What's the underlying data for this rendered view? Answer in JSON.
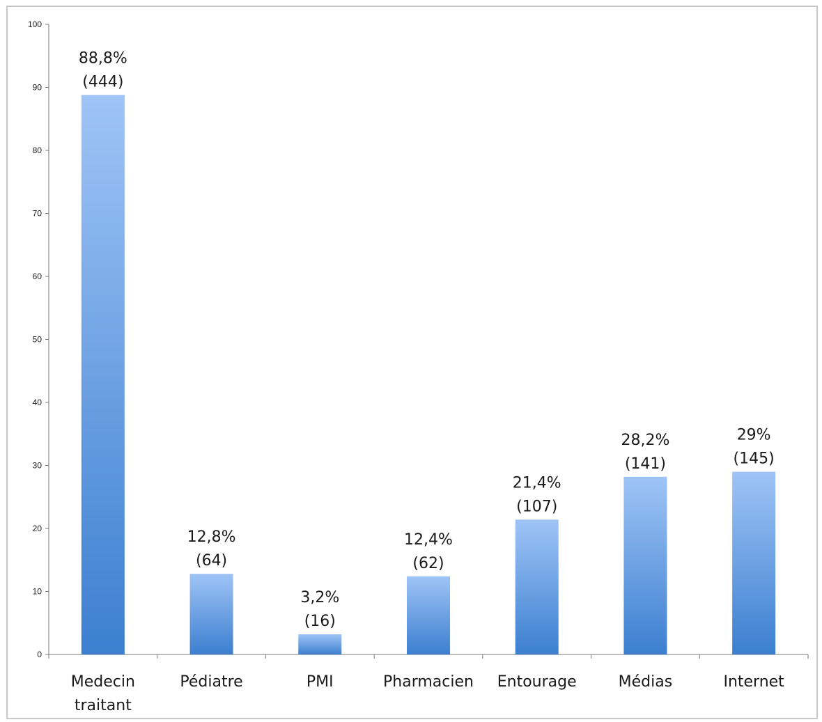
{
  "chart_data": {
    "type": "bar",
    "categories": [
      [
        "Medecin",
        "traitant"
      ],
      [
        "Pédiatre"
      ],
      [
        "PMI"
      ],
      [
        "Pharmacien"
      ],
      [
        "Entourage"
      ],
      [
        "Médias"
      ],
      [
        "Internet"
      ]
    ],
    "values": [
      88.8,
      12.8,
      3.2,
      12.4,
      21.4,
      28.2,
      29
    ],
    "data_labels": [
      [
        "88,8%",
        "(444)"
      ],
      [
        "12,8%",
        "(64)"
      ],
      [
        "3,2%",
        "(16)"
      ],
      [
        "12,4%",
        "(62)"
      ],
      [
        "21,4%",
        "(107)"
      ],
      [
        "28,2%",
        "(141)"
      ],
      [
        "29%",
        "(145)"
      ]
    ],
    "yticks": [
      "0",
      "10",
      "20",
      "30",
      "40",
      "50",
      "60",
      "70",
      "80",
      "90",
      "100"
    ],
    "ylim": [
      0,
      100
    ],
    "grid": false,
    "title": "",
    "xlabel": "",
    "ylabel": "",
    "colors": {
      "bar_top": "#9fc4f6",
      "bar_bottom": "#3c7fd0",
      "axis": "#7a7a7a"
    }
  }
}
